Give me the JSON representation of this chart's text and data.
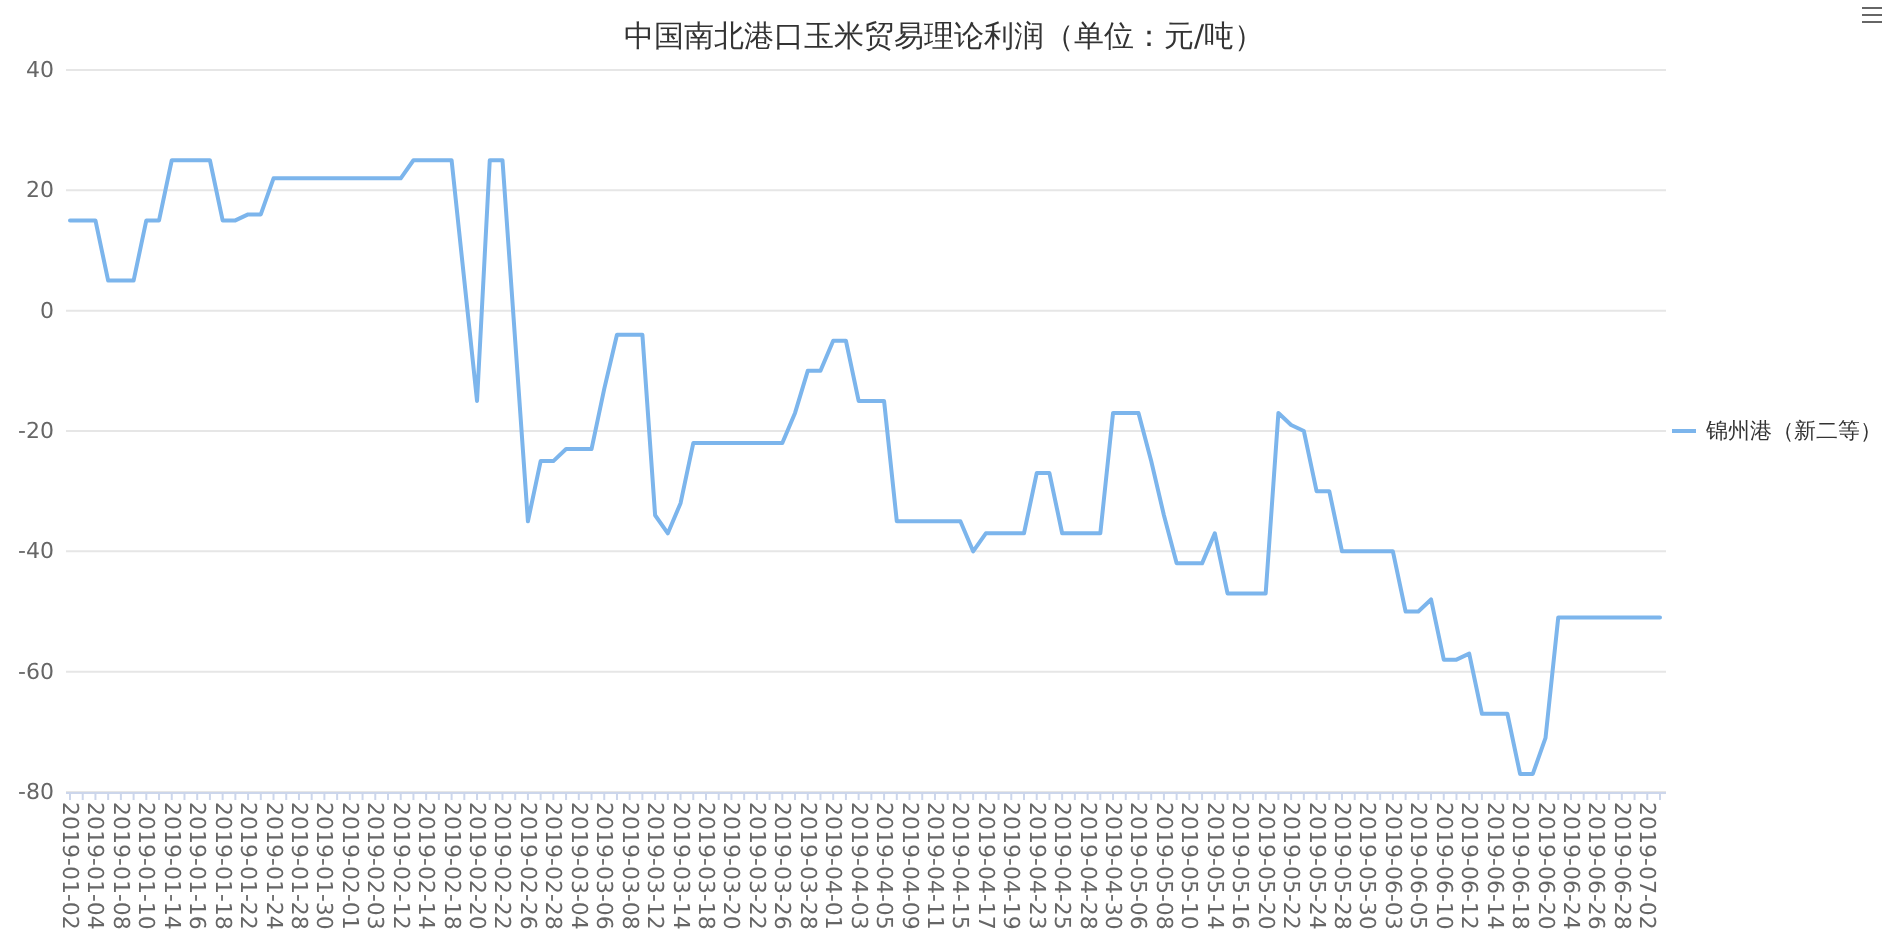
{
  "chart_data": {
    "type": "line",
    "title": "中国南北港口玉米贸易理论利润（单位：元/吨）",
    "categories": [
      "2019-01-02",
      null,
      "2019-01-04",
      null,
      "2019-01-08",
      null,
      "2019-01-10",
      null,
      "2019-01-14",
      null,
      "2019-01-16",
      null,
      "2019-01-18",
      null,
      "2019-01-22",
      null,
      "2019-01-24",
      null,
      "2019-01-28",
      null,
      "2019-01-30",
      null,
      "2019-02-01",
      null,
      "2019-02-03",
      null,
      "2019-02-12",
      null,
      "2019-02-14",
      null,
      "2019-02-18",
      null,
      "2019-02-20",
      null,
      "2019-02-22",
      null,
      "2019-02-26",
      null,
      "2019-02-28",
      null,
      "2019-03-04",
      null,
      "2019-03-06",
      null,
      "2019-03-08",
      null,
      "2019-03-12",
      null,
      "2019-03-14",
      null,
      "2019-03-18",
      null,
      "2019-03-20",
      null,
      "2019-03-22",
      null,
      "2019-03-26",
      null,
      "2019-03-28",
      null,
      "2019-04-01",
      null,
      "2019-04-03",
      null,
      "2019-04-05",
      null,
      "2019-04-09",
      null,
      "2019-04-11",
      null,
      "2019-04-15",
      null,
      "2019-04-17",
      null,
      "2019-04-19",
      null,
      "2019-04-23",
      null,
      "2019-04-25",
      null,
      "2019-04-28",
      null,
      "2019-04-30",
      null,
      "2019-05-06",
      null,
      "2019-05-08",
      null,
      "2019-05-10",
      null,
      "2019-05-14",
      null,
      "2019-05-16",
      null,
      "2019-05-20",
      null,
      "2019-05-22",
      null,
      "2019-05-24",
      null,
      "2019-05-28",
      null,
      "2019-05-30",
      null,
      "2019-06-03",
      null,
      "2019-06-05",
      null,
      "2019-06-10",
      null,
      "2019-06-12",
      null,
      "2019-06-14",
      null,
      "2019-06-18",
      null,
      "2019-06-20",
      null,
      "2019-06-24",
      null,
      "2019-06-26",
      null,
      "2019-06-28",
      null,
      "2019-07-02",
      null
    ],
    "series": [
      {
        "name": "锦州港（新二等）",
        "color": "#7cb5ec",
        "values": [
          15,
          15,
          15,
          5,
          5,
          5,
          15,
          15,
          25,
          25,
          25,
          25,
          15,
          15,
          16,
          16,
          22,
          22,
          22,
          22,
          22,
          22,
          22,
          22,
          22,
          22,
          22,
          25,
          25,
          25,
          25,
          5,
          -15,
          25,
          25,
          -5,
          -35,
          -25,
          -25,
          -23,
          -23,
          -23,
          -13,
          -4,
          -4,
          -4,
          -34,
          -37,
          -32,
          -22,
          -22,
          -22,
          -22,
          -22,
          -22,
          -22,
          -22,
          -17,
          -10,
          -10,
          -5,
          -5,
          -15,
          -15,
          -15,
          -35,
          -35,
          -35,
          -35,
          -35,
          -35,
          -40,
          -37,
          -37,
          -37,
          -37,
          -27,
          -27,
          -37,
          -37,
          -37,
          -37,
          -17,
          -17,
          -17,
          -25,
          -34,
          -42,
          -42,
          -42,
          -37,
          -47,
          -47,
          -47,
          -47,
          -17,
          -19,
          -20,
          -30,
          -30,
          -40,
          -40,
          -40,
          -40,
          -40,
          -50,
          -50,
          -48,
          -58,
          -58,
          -57,
          -67,
          -67,
          -67,
          -77,
          -77,
          -71,
          -51,
          -51,
          -51,
          -51,
          -51,
          -51,
          -51,
          -51,
          -51
        ]
      }
    ],
    "ylim": [
      -80,
      40
    ],
    "yticks": [
      -80,
      -60,
      -40,
      -20,
      0,
      20,
      40
    ],
    "grid": "y",
    "legend": "right"
  }
}
